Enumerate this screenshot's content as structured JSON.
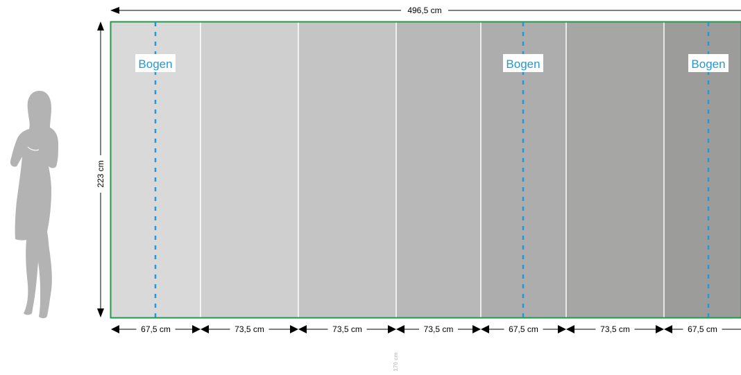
{
  "total_width": "496,5 cm",
  "height_label": "223 cm",
  "person_label": "170 cm",
  "sheet_label": "Bogen",
  "panels": [
    {
      "width": "67,5 cm",
      "color": "#d9d9d9",
      "bogen": true
    },
    {
      "width": "73,5 cm",
      "color": "#cfcfcf",
      "bogen": false
    },
    {
      "width": "73,5 cm",
      "color": "#c4c4c4",
      "bogen": false
    },
    {
      "width": "73,5 cm",
      "color": "#b8b8b8",
      "bogen": false
    },
    {
      "width": "67,5 cm",
      "color": "#adadad",
      "bogen": true
    },
    {
      "width": "73,5 cm",
      "color": "#a6a6a5",
      "bogen": false
    },
    {
      "width": "67,5 cm",
      "color": "#9c9c9a",
      "bogen": true
    }
  ],
  "colors": {
    "frame": "#1f9a4a",
    "bogen": "#1f9ad6",
    "dimension": "#000000",
    "silhouette": "#b3b3b3"
  }
}
